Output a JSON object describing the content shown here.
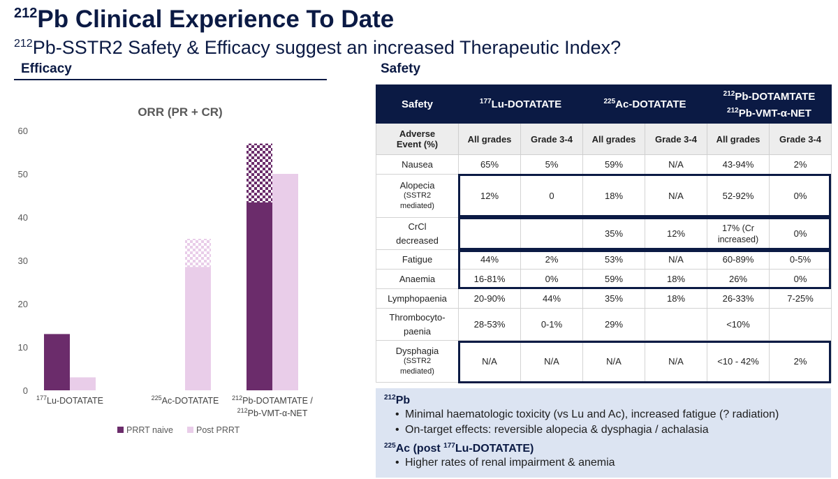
{
  "header": {
    "title_sup": "212",
    "title": "Pb Clinical Experience To Date",
    "subtitle_sup": "212",
    "subtitle": "Pb-SSTR2 Safety & Efficacy suggest an increased Therapeutic Index?"
  },
  "efficacy": {
    "heading": "Efficacy"
  },
  "safety": {
    "heading": "Safety"
  },
  "chart_data": {
    "type": "bar",
    "title": "ORR (PR + CR)",
    "categories": [
      "177Lu-DOTATATE",
      "225Ac-DOTATATE",
      "212Pb-DOTAMTATE / 212Pb-VMT-α-NET"
    ],
    "category_labels": [
      {
        "sup": "177",
        "text": "Lu-DOTATATE"
      },
      {
        "sup": "225",
        "text": "Ac-DOTATATE"
      },
      {
        "sup": "212",
        "text": "Pb-DOTAMTATE /",
        "sup2": "212",
        "text2": "Pb-VMT-α-NET"
      }
    ],
    "ylim": [
      0,
      60
    ],
    "yticks": [
      0,
      10,
      20,
      30,
      40,
      50,
      60
    ],
    "grid": false,
    "legend_position": "bottom",
    "series": [
      {
        "name": "PRRT naive",
        "color": "#6b2c6b",
        "values": [
          13,
          null,
          43.4
        ],
        "checkered_top": [
          null,
          null,
          57
        ]
      },
      {
        "name": "Post PRRT",
        "color": "#e9cde9",
        "values": [
          3,
          28.5,
          50
        ],
        "checkered_top": [
          null,
          35,
          null
        ]
      }
    ]
  },
  "table": {
    "header": {
      "col0": "Safety",
      "lu": {
        "sup": "177",
        "text": "Lu-DOTATATE"
      },
      "ac": {
        "sup": "225",
        "text": "Ac-DOTATATE"
      },
      "pb1": {
        "sup": "212",
        "text": "Pb-DOTAMTATE"
      },
      "pb2": {
        "sup": "212",
        "text": "Pb-VMT-α-NET"
      }
    },
    "subheader": {
      "ae_line1": "Adverse",
      "ae_line2": "Event (%)",
      "all": "All grades",
      "g34": "Grade 3-4"
    },
    "rows": [
      {
        "event": "Nausea",
        "note": "",
        "vals": [
          "65%",
          "5%",
          "59%",
          "N/A",
          "43-94%",
          "2%"
        ]
      },
      {
        "event": "Alopecia",
        "note": "(SSTR2 mediated)",
        "vals": [
          "12%",
          "0",
          "18%",
          "N/A",
          "52-92%",
          "0%"
        ]
      },
      {
        "event": "CrCl decreased",
        "note": "",
        "vals": [
          "",
          "",
          "35%",
          "12%",
          "17% (Cr increased)",
          "0%"
        ]
      },
      {
        "event": "Fatigue",
        "note": "",
        "vals": [
          "44%",
          "2%",
          "53%",
          "N/A",
          "60-89%",
          "0-5%"
        ]
      },
      {
        "event": "Anaemia",
        "note": "",
        "vals": [
          "16-81%",
          "0%",
          "59%",
          "18%",
          "26%",
          "0%"
        ]
      },
      {
        "event": "Lymphopaenia",
        "note": "",
        "vals": [
          "20-90%",
          "44%",
          "35%",
          "18%",
          "26-33%",
          "7-25%"
        ]
      },
      {
        "event": "Thrombocyto-paenia",
        "note": "",
        "vals": [
          "28-53%",
          "0-1%",
          "29%",
          "",
          "<10%",
          ""
        ]
      },
      {
        "event": "Dysphagia",
        "note": "(SSTR2 mediated)",
        "vals": [
          "N/A",
          "N/A",
          "N/A",
          "N/A",
          "<10 - 42%",
          "2%"
        ]
      }
    ]
  },
  "notes": {
    "pb_heading_sup": "212",
    "pb_heading": "Pb",
    "pb_bullets": [
      "Minimal haematologic toxicity (vs Lu and Ac), increased fatigue (? radiation)",
      "On-target effects: reversible alopecia & dysphagia / achalasia"
    ],
    "ac_heading_sup": "225",
    "ac_heading_a": "Ac (post ",
    "ac_heading_sup2": "177",
    "ac_heading_b": "Lu-DOTATATE)",
    "ac_bullets": [
      "Higher rates of renal impairment & anemia"
    ]
  }
}
